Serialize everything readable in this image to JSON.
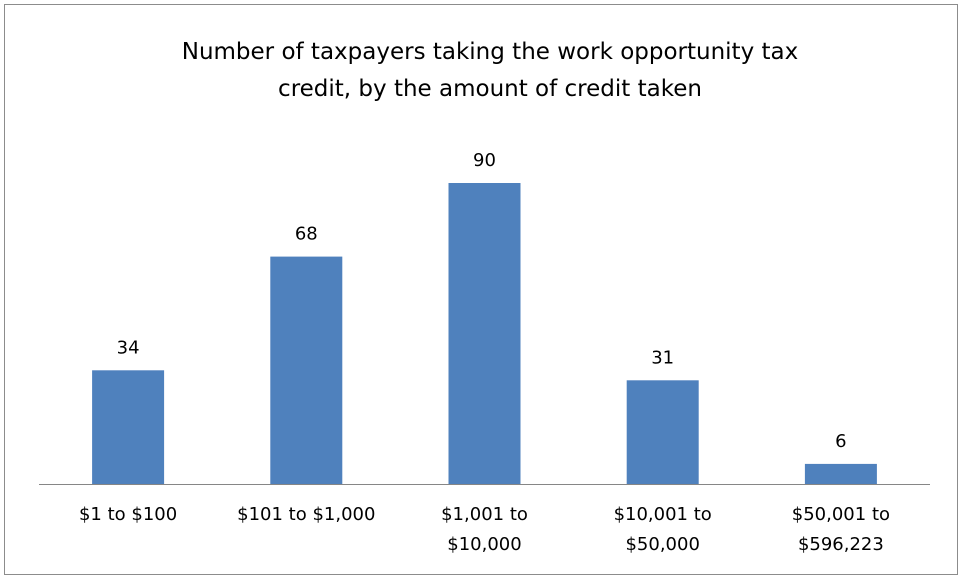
{
  "chart_data": {
    "type": "bar",
    "title_lines": [
      "Number of taxpayers taking the work opportunity tax",
      "credit, by the amount of credit taken"
    ],
    "categories": [
      "$1 to $100",
      "$101 to $1,000",
      "$1,001 to $10,000",
      "$10,001 to $50,000",
      "$50,001 to $596,223"
    ],
    "category_label_lines": [
      [
        "$1 to $100"
      ],
      [
        "$101 to $1,000"
      ],
      [
        "$1,001 to",
        "$10,000"
      ],
      [
        "$10,001 to",
        "$50,000"
      ],
      [
        "$50,001 to",
        "$596,223"
      ]
    ],
    "values": [
      34,
      68,
      90,
      31,
      6
    ],
    "data_labels": [
      "34",
      "68",
      "90",
      "31",
      "6"
    ],
    "bar_color": "#4F81BD",
    "axis_color": "#868686",
    "ylim": [
      0,
      100
    ],
    "grid": false,
    "legend": "none",
    "xlabel": "",
    "ylabel": ""
  }
}
